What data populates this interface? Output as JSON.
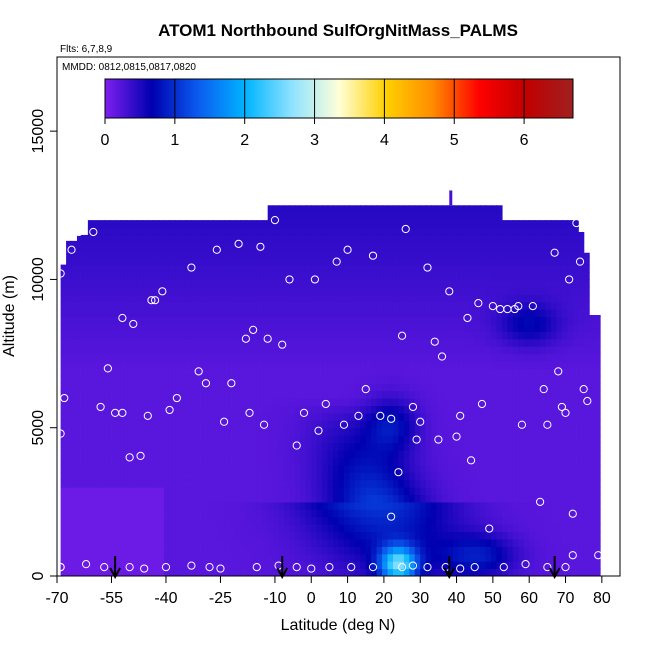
{
  "chart_data": {
    "type": "heatmap",
    "title": "ATOM1 Northbound SulfOrgNitMass_PALMS",
    "flights_label": "Flts: 6,7,8,9",
    "dates_label": "MMDD: 0812,0815,0817,0820",
    "xlabel": "Latitude (deg N)",
    "ylabel": "Altitude (m)",
    "xlim": [
      -70,
      85
    ],
    "ylim": [
      0,
      17500
    ],
    "x_ticks": [
      -70,
      -55,
      -40,
      -25,
      -10,
      0,
      10,
      20,
      30,
      40,
      50,
      60,
      70,
      80
    ],
    "x_tick_labels": [
      "-70",
      "-55",
      "-40",
      "-25",
      "-10",
      "0",
      "10",
      "20",
      "30",
      "40",
      "50",
      "60",
      "70",
      "80"
    ],
    "y_ticks": [
      0,
      5000,
      10000,
      15000
    ],
    "y_tick_labels": [
      "0",
      "5000",
      "10000",
      "15000"
    ],
    "colorbar": {
      "min": 0,
      "max": 6.7,
      "ticks": [
        0,
        1,
        2,
        3,
        4,
        5,
        6
      ],
      "tick_labels": [
        "0",
        "1",
        "2",
        "3",
        "4",
        "5",
        "6"
      ],
      "colors": [
        "#7f1ff0",
        "#0000b0",
        "#0b5cf0",
        "#00b4ff",
        "#8fe3ff",
        "#ffffd8",
        "#ffd000",
        "#ff8c00",
        "#ff0000",
        "#c00000",
        "#a02020"
      ]
    },
    "markers_lat": [
      -54,
      -8,
      38,
      67
    ],
    "sample_points": [
      [
        -69,
        10200
      ],
      [
        -68,
        6000
      ],
      [
        -69,
        4800
      ],
      [
        -69,
        300
      ],
      [
        -66,
        11000
      ],
      [
        -64,
        11600
      ],
      [
        -60,
        11600
      ],
      [
        -58,
        5700
      ],
      [
        -56,
        7000
      ],
      [
        -54,
        5500
      ],
      [
        -52,
        5500
      ],
      [
        -52,
        8700
      ],
      [
        -50,
        4000
      ],
      [
        -49,
        8500
      ],
      [
        -47,
        4050
      ],
      [
        -45,
        5400
      ],
      [
        -44,
        9300
      ],
      [
        -43,
        9300
      ],
      [
        -41,
        9600
      ],
      [
        -39,
        5600
      ],
      [
        -37,
        6000
      ],
      [
        -33,
        10400
      ],
      [
        -31,
        6900
      ],
      [
        -29,
        6500
      ],
      [
        -26,
        11000
      ],
      [
        -24,
        5200
      ],
      [
        -22,
        6500
      ],
      [
        -20,
        11200
      ],
      [
        -18,
        8000
      ],
      [
        -17,
        5500
      ],
      [
        -16,
        8300
      ],
      [
        -14,
        11100
      ],
      [
        -13,
        5100
      ],
      [
        -12,
        8000
      ],
      [
        -10,
        12000
      ],
      [
        -8,
        7800
      ],
      [
        -6,
        10000
      ],
      [
        -4,
        4400
      ],
      [
        -2,
        5500
      ],
      [
        1,
        10000
      ],
      [
        2,
        4900
      ],
      [
        4,
        5800
      ],
      [
        7,
        10600
      ],
      [
        9,
        5100
      ],
      [
        10,
        11000
      ],
      [
        13,
        5400
      ],
      [
        15,
        6300
      ],
      [
        17,
        10800
      ],
      [
        19,
        5400
      ],
      [
        22,
        5300
      ],
      [
        24,
        3500
      ],
      [
        25,
        8100
      ],
      [
        26,
        11700
      ],
      [
        28,
        5700
      ],
      [
        29,
        4600
      ],
      [
        30,
        5200
      ],
      [
        32,
        10400
      ],
      [
        34,
        7900
      ],
      [
        35,
        4600
      ],
      [
        36,
        7400
      ],
      [
        38,
        9600
      ],
      [
        40,
        4700
      ],
      [
        41,
        5400
      ],
      [
        43,
        8700
      ],
      [
        44,
        3900
      ],
      [
        46,
        9200
      ],
      [
        47,
        5800
      ],
      [
        49,
        1600
      ],
      [
        50,
        9100
      ],
      [
        52,
        9000
      ],
      [
        54,
        9000
      ],
      [
        56,
        9000
      ],
      [
        57,
        9100
      ],
      [
        58,
        5100
      ],
      [
        61,
        9100
      ],
      [
        63,
        2500
      ],
      [
        64,
        6300
      ],
      [
        65,
        5100
      ],
      [
        67,
        10900
      ],
      [
        68,
        6900
      ],
      [
        69,
        5700
      ],
      [
        70,
        5500
      ],
      [
        71,
        10000
      ],
      [
        72,
        2100
      ],
      [
        73,
        11900
      ],
      [
        74,
        10600
      ],
      [
        75,
        6300
      ],
      [
        76,
        5900
      ],
      [
        -69,
        300
      ],
      [
        -62,
        400
      ],
      [
        -57,
        300
      ],
      [
        -50,
        300
      ],
      [
        -46,
        250
      ],
      [
        -40,
        300
      ],
      [
        -33,
        350
      ],
      [
        -28,
        300
      ],
      [
        -25,
        250
      ],
      [
        -15,
        300
      ],
      [
        -9,
        350
      ],
      [
        -4,
        300
      ],
      [
        0,
        250
      ],
      [
        5,
        300
      ],
      [
        11,
        300
      ],
      [
        17,
        300
      ],
      [
        22,
        2000
      ],
      [
        25,
        300
      ],
      [
        28,
        350
      ],
      [
        32,
        300
      ],
      [
        37,
        300
      ],
      [
        41,
        250
      ],
      [
        45,
        300
      ],
      [
        53,
        300
      ],
      [
        59,
        400
      ],
      [
        65,
        300
      ],
      [
        70,
        300
      ],
      [
        72,
        700
      ],
      [
        79,
        700
      ]
    ]
  }
}
